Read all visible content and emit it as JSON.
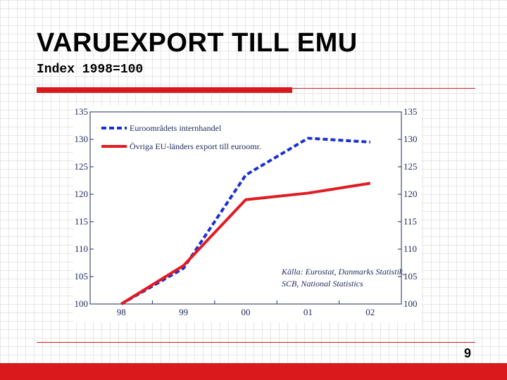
{
  "slide": {
    "title": "VARUEXPORT TILL EMU",
    "subtitle": "Index 1998=100",
    "page_number": "9"
  },
  "colors": {
    "accent": "#d9191c",
    "series_blue": "#1a2fd0",
    "series_red": "#e11b22",
    "axis": "#1f2a5a"
  },
  "chart_data": {
    "type": "line",
    "categories": [
      "98",
      "99",
      "00",
      "01",
      "02"
    ],
    "series": [
      {
        "name": "Euroområdets internhandel",
        "values": [
          100,
          106.5,
          123.5,
          130.2,
          129.5
        ],
        "style": "dashed",
        "color": "#1a2fd0"
      },
      {
        "name": "Övriga EU-länders export till euroomr.",
        "values": [
          100,
          107,
          119,
          120.2,
          122
        ],
        "style": "solid",
        "color": "#e11b22"
      }
    ],
    "ylim": [
      100,
      135
    ],
    "yticks": [
      "100",
      "105",
      "110",
      "115",
      "120",
      "125",
      "130",
      "135"
    ],
    "dual_y_axis": true,
    "legend_position": "top-left",
    "annotation": [
      "Källa: Eurostat, Danmarks Statistik,",
      "SCB, National Statistics"
    ],
    "grid": false
  }
}
